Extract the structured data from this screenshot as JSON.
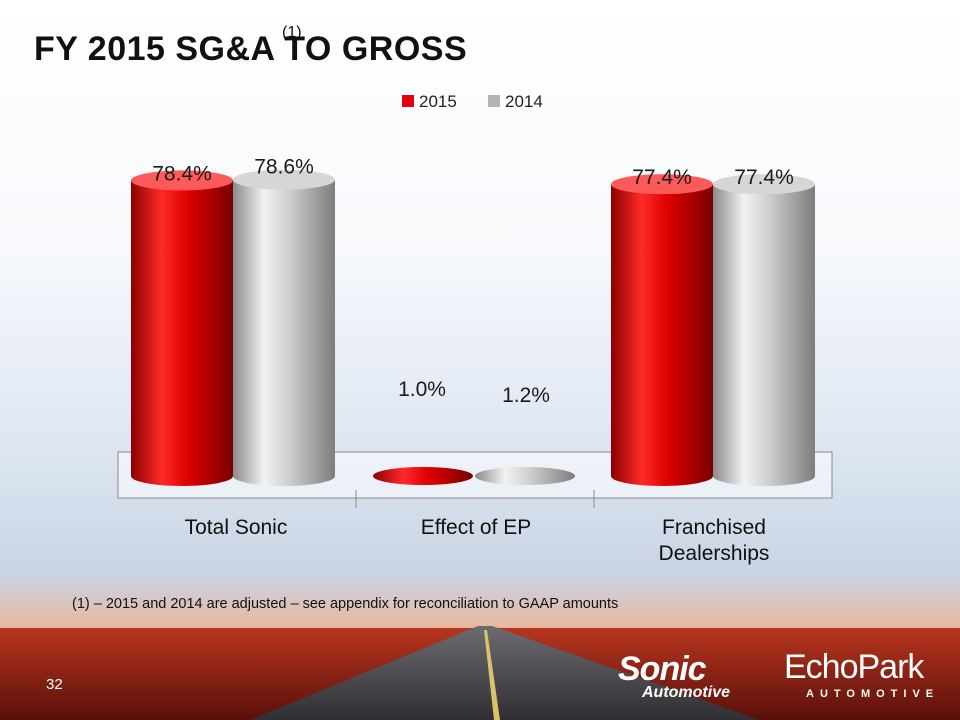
{
  "slide": {
    "title": "FY 2015 SG&A TO GROSS",
    "title_superscript": "(1)",
    "footnote": "(1) – 2015 and 2014 are adjusted – see appendix for reconciliation to GAAP amounts",
    "page_number": "32"
  },
  "logos": {
    "sonic_main": "Sonic",
    "sonic_sub": "Automotive",
    "echo_main": "EchoPark",
    "echo_sub": "AUTOMOTIVE"
  },
  "colors": {
    "series_2015": "#e3000f",
    "series_2014": "#b4b4b4"
  },
  "chart_data": {
    "type": "bar",
    "title": "",
    "categories": [
      "Total Sonic",
      "Effect of EP",
      "Franchised Dealerships"
    ],
    "category_lines": [
      [
        "Total Sonic"
      ],
      [
        "Effect of EP"
      ],
      [
        "Franchised",
        "Dealerships"
      ]
    ],
    "series": [
      {
        "name": "2015",
        "values": [
          78.4,
          1.0,
          77.4
        ],
        "labels": [
          "78.4%",
          "1.0%",
          "77.4%"
        ]
      },
      {
        "name": "2014",
        "values": [
          78.6,
          1.2,
          77.4
        ],
        "labels": [
          "78.6%",
          "1.2%",
          "77.4%"
        ]
      }
    ],
    "legend_position": "top-center",
    "xlabel": "",
    "ylabel": ""
  }
}
